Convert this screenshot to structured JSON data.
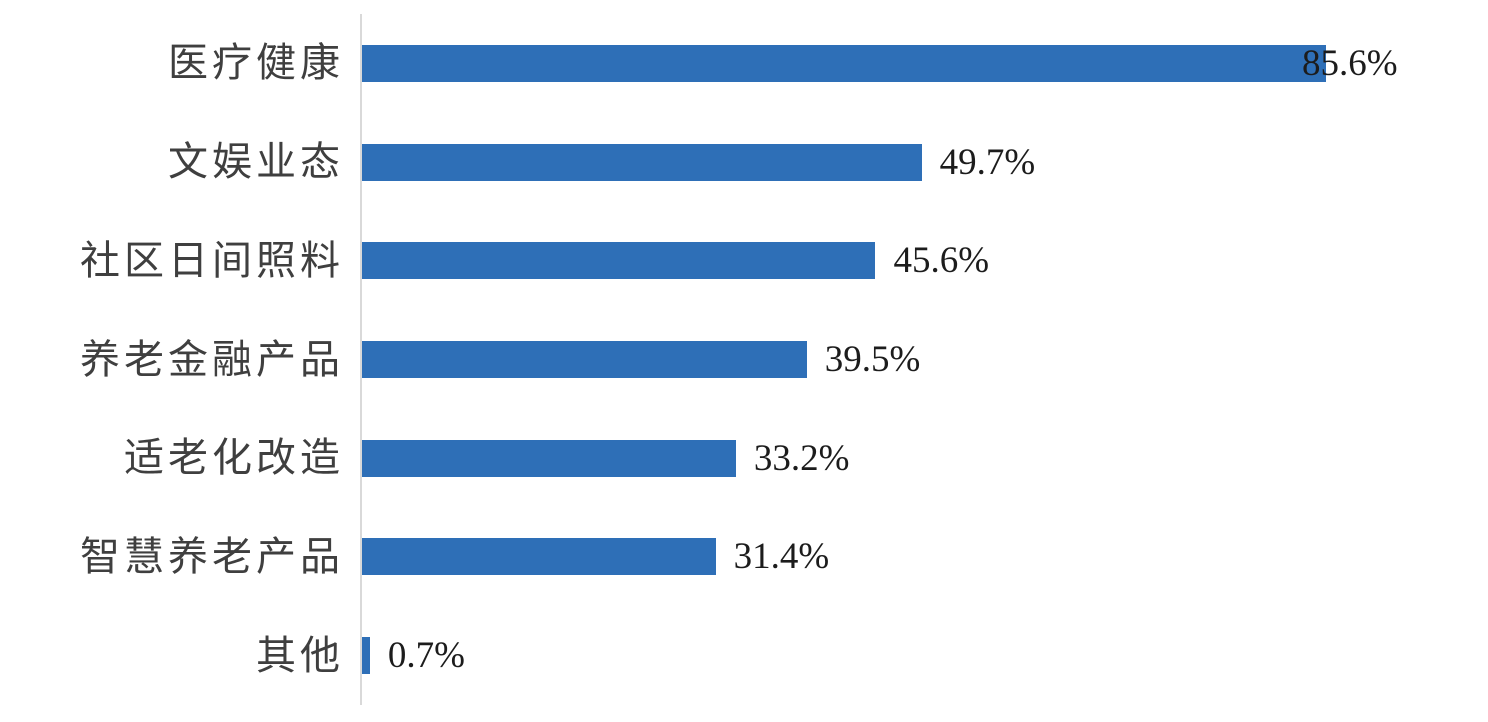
{
  "chart_data": {
    "type": "bar",
    "orientation": "horizontal",
    "title": "",
    "xlabel": "",
    "ylabel": "",
    "categories": [
      "医疗健康",
      "文娱业态",
      "社区日间照料",
      "养老金融产品",
      "适老化改造",
      "智慧养老产品",
      "其他"
    ],
    "values": [
      85.6,
      49.7,
      45.6,
      39.5,
      33.2,
      31.4,
      0.7
    ],
    "value_labels": [
      "85.6%",
      "49.7%",
      "45.6%",
      "39.5%",
      "33.2%",
      "31.4%",
      "0.7%"
    ],
    "xlim": [
      0,
      100
    ],
    "grid": false,
    "legend": "none",
    "data_label_position": "outside-end",
    "colors": {
      "bar": "#2E6FB7",
      "axis_line": "#D9D9D9",
      "category_label": "#3F3F3F",
      "value_label": "#1C1C1C",
      "background": "#FFFFFF"
    }
  }
}
